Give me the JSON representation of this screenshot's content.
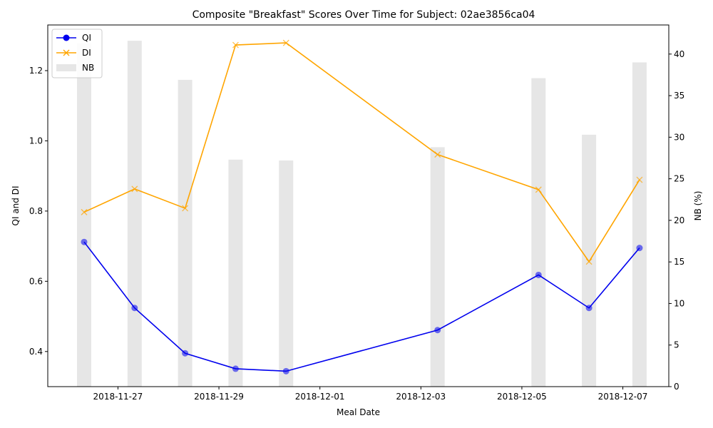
{
  "chart_data": {
    "type": "line",
    "title": "Composite \"Breakfast\" Scores Over Time for Subject: 02ae3856ca04",
    "xlabel": "Meal Date",
    "ylabel_left": "QI and DI",
    "ylabel_right": "NB (%)",
    "x_ticks": [
      "2018-11-27",
      "2018-11-29",
      "2018-12-01",
      "2018-12-03",
      "2018-12-05",
      "2018-12-07"
    ],
    "y_left_ticks": [
      "0.4",
      "0.6",
      "0.8",
      "1.0",
      "1.2"
    ],
    "y_right_ticks": [
      "0",
      "5",
      "10",
      "15",
      "20",
      "25",
      "30",
      "35",
      "40"
    ],
    "ylim_left": [
      0.3,
      1.33
    ],
    "ylim_right": [
      0,
      43.5
    ],
    "x_dates": [
      "2018-11-26",
      "2018-11-27",
      "2018-11-28",
      "2018-11-29",
      "2018-11-30",
      "2018-12-03",
      "2018-12-05",
      "2018-12-06",
      "2018-12-07"
    ],
    "series": [
      {
        "name": "QI",
        "kind": "line",
        "marker": "circle",
        "color": "#0000ee",
        "values": [
          0.712,
          0.524,
          0.395,
          0.351,
          0.344,
          0.461,
          0.618,
          0.524,
          0.695
        ]
      },
      {
        "name": "DI",
        "kind": "line",
        "marker": "x",
        "color": "#ffa500",
        "values": [
          0.797,
          0.863,
          0.808,
          1.273,
          1.279,
          0.961,
          0.861,
          0.656,
          0.889
        ]
      },
      {
        "name": "NB",
        "kind": "bar",
        "axis": "right",
        "color": "#e6e6e6",
        "values": [
          41.3,
          41.6,
          36.9,
          27.3,
          27.2,
          28.8,
          37.1,
          30.3,
          39.0
        ]
      }
    ],
    "legend_position": "upper-left",
    "grid": false
  }
}
